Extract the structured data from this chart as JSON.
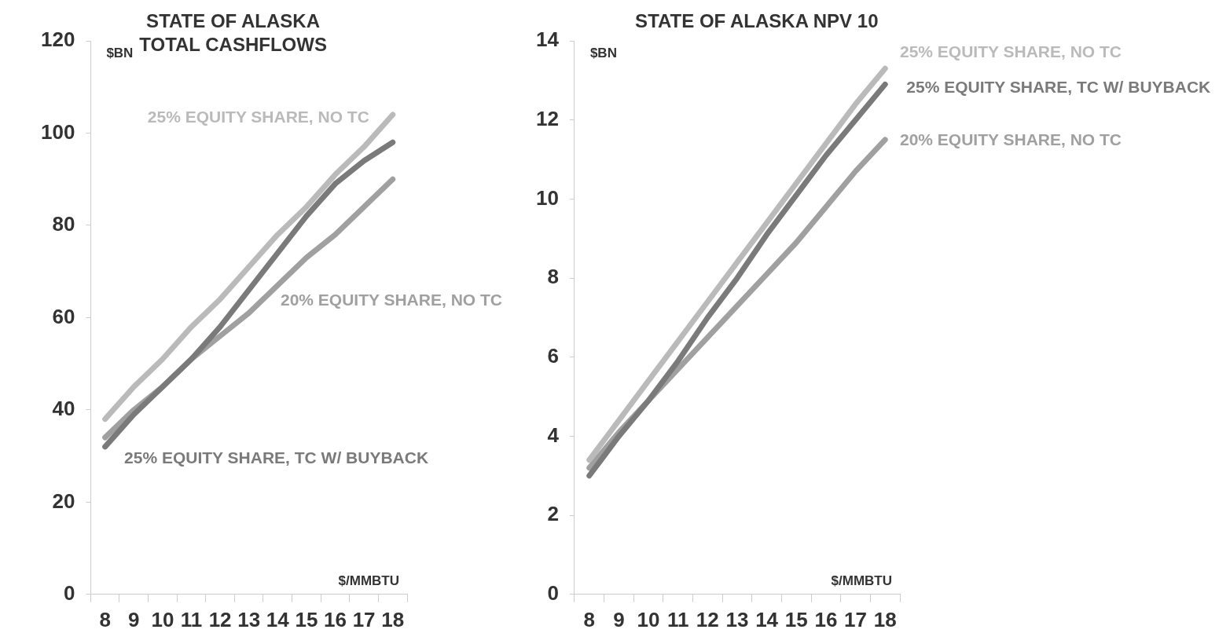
{
  "chart_data": [
    {
      "type": "line",
      "title": "STATE OF ALASKA TOTAL CASHFLOWS",
      "xlabel": "$/MMBTU",
      "ylabel": "$BN",
      "categories": [
        "8",
        "9",
        "10",
        "11",
        "12",
        "13",
        "14",
        "15",
        "16",
        "17",
        "18"
      ],
      "ylim": [
        0,
        120
      ],
      "yticks": [
        0,
        20,
        40,
        60,
        80,
        100,
        120
      ],
      "grid": false,
      "legend": false,
      "marker": "none",
      "line_style": "solid",
      "series": [
        {
          "name": "25% EQUITY SHARE, NO TC",
          "color": "#bababa",
          "values": [
            38,
            45,
            51,
            58,
            64,
            71,
            78,
            84,
            91,
            97,
            104
          ]
        },
        {
          "name": "25% EQUITY SHARE, TC W/ BUYBACK",
          "color": "#7a7a7a",
          "values": [
            32,
            39,
            45,
            51,
            58,
            66,
            74,
            82,
            89,
            94,
            98
          ]
        },
        {
          "name": "20% EQUITY SHARE, NO TC",
          "color": "#a0a0a0",
          "values": [
            34,
            40,
            45,
            51,
            56,
            61,
            67,
            73,
            78,
            84,
            90
          ]
        }
      ]
    },
    {
      "type": "line",
      "title": "STATE OF ALASKA NPV 10",
      "xlabel": "$/MMBTU",
      "ylabel": "$BN",
      "categories": [
        "8",
        "9",
        "10",
        "11",
        "12",
        "13",
        "14",
        "15",
        "16",
        "17",
        "18"
      ],
      "ylim": [
        0,
        14
      ],
      "yticks": [
        0,
        2,
        4,
        6,
        8,
        10,
        12,
        14
      ],
      "grid": false,
      "legend": false,
      "marker": "none",
      "line_style": "solid",
      "series": [
        {
          "name": "25% EQUITY SHARE, NO TC",
          "color": "#bababa",
          "values": [
            3.4,
            4.4,
            5.4,
            6.4,
            7.4,
            8.4,
            9.4,
            10.4,
            11.4,
            12.4,
            13.3
          ]
        },
        {
          "name": "25% EQUITY SHARE, TC W/ BUYBACK",
          "color": "#7a7a7a",
          "values": [
            3.0,
            4.0,
            4.9,
            5.9,
            7.0,
            8.0,
            9.1,
            10.1,
            11.1,
            12.0,
            12.9
          ]
        },
        {
          "name": "20% EQUITY SHARE, NO TC",
          "color": "#a0a0a0",
          "values": [
            3.2,
            4.1,
            4.9,
            5.7,
            6.5,
            7.3,
            8.1,
            8.9,
            9.8,
            10.7,
            11.5
          ]
        }
      ]
    }
  ]
}
